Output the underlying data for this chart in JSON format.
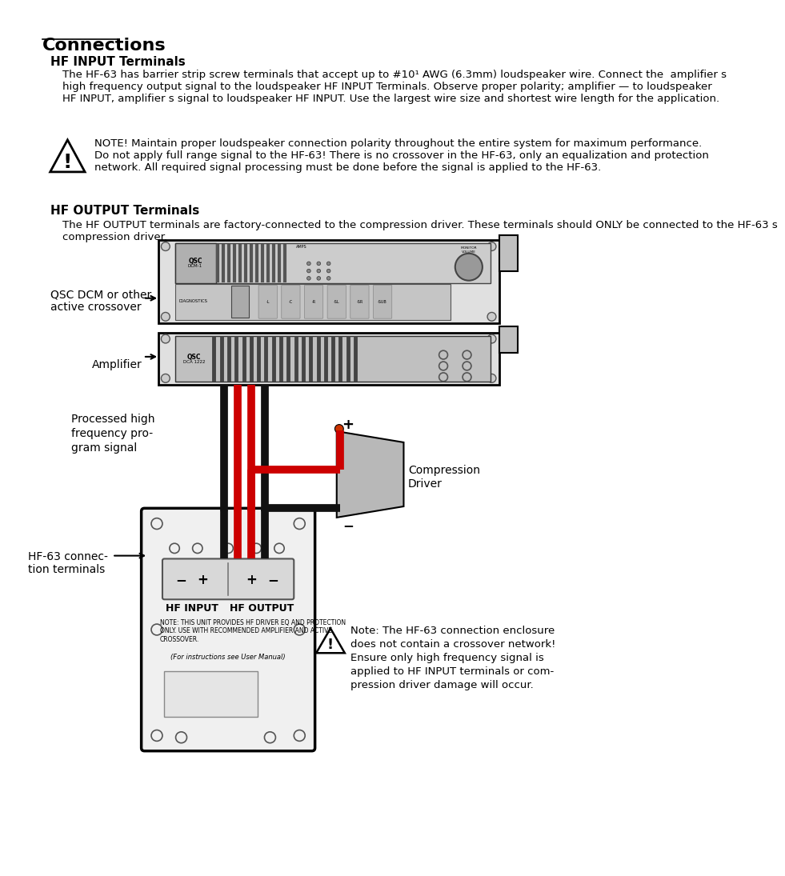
{
  "title": "Connections",
  "bg_color": "#ffffff",
  "text_color": "#000000",
  "sections": {
    "hf_input_title": "HF INPUT Terminals",
    "hf_input_body": "The HF-63 has barrier strip screw terminals that accept up to #10¹ AWG (6.3mm) loudspeaker wire. Connect the  amplifier s\nhigh frequency output signal to the loudspeaker HF INPUT Terminals. Observe proper polarity; amplifier — to loudspeaker\nHF INPUT, amplifier s signal to loudspeaker HF INPUT. Use the largest wire size and shortest wire length for the application.",
    "note_body": "NOTE! Maintain proper loudspeaker connection polarity throughout the entire system for maximum performance.\nDo not apply full range signal to the HF-63! There is no crossover in the HF-63, only an equalization and protection\nnetwork. All required signal processing must be done before the signal is applied to the HF-63.",
    "hf_output_title": "HF OUTPUT Terminals",
    "hf_output_body": "The HF OUTPUT terminals are factory-connected to the compression driver. These terminals should ONLY be connected to the HF-63 s\ncompression driver.",
    "label_dcm": "QSC DCM or other\nactive crossover",
    "label_amp": "Amplifier",
    "label_signal": "Processed high\nfrequency pro-\ngram signal",
    "label_comp": "Compression\nDriver",
    "label_hf63": "HF-63 connec-\ntion terminals",
    "label_hfinput": "HF INPUT",
    "label_hfoutput": "HF OUTPUT",
    "note2_body": "Note: The HF-63 connection enclosure\ndoes not contain a crossover network!\nEnsure only high frequency signal is\napplied to HF INPUT terminals or com-\npression driver damage will occur.",
    "note_in_box": "NOTE: THIS UNIT PROVIDES HF DRIVER EQ AND PROTECTION\nONLY. USE WITH RECOMMENDED AMPLIFIER AND ACTIVE\nCROSSOVER.",
    "for_instructions": "(For instructions see User Manual)"
  }
}
